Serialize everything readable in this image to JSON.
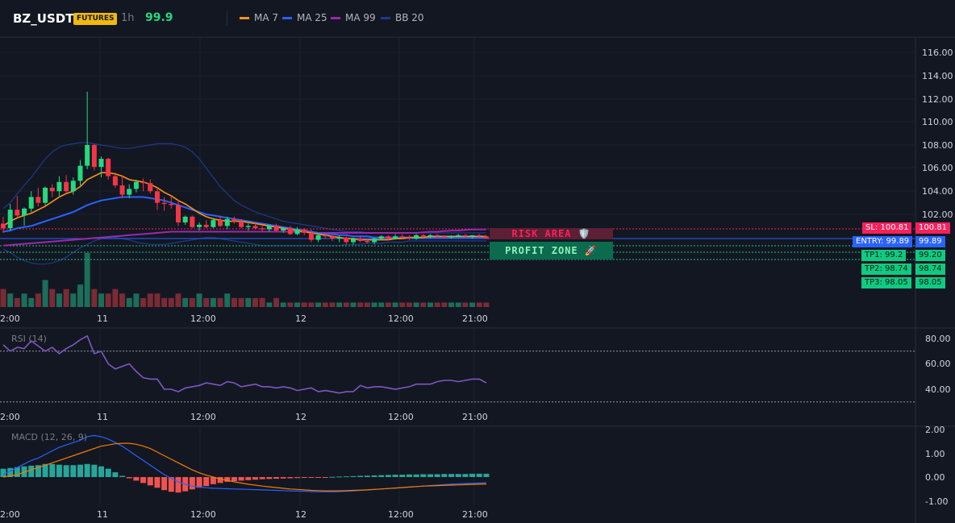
{
  "header": {
    "symbol": "BZ_USDT",
    "badge": "FUTURES",
    "interval": "1h",
    "price": "99.9",
    "legend": [
      {
        "label": "MA 7",
        "color": "#f7931a"
      },
      {
        "label": "MA 25",
        "color": "#2962ff"
      },
      {
        "label": "MA 99",
        "color": "#9c27b0"
      },
      {
        "label": "BB 20",
        "color": "#1e3a8a"
      }
    ]
  },
  "price_axis": {
    "ticks": [
      "116.00",
      "114.00",
      "112.00",
      "110.00",
      "108.00",
      "106.00",
      "104.00",
      "102.00"
    ]
  },
  "time_axis": {
    "ticks": [
      "2:00",
      "11",
      "12:00",
      "12",
      "12:00",
      "21:00"
    ]
  },
  "levels": {
    "sl": "SL: 100.81",
    "sl_price": "100.81",
    "entry": "ENTRY: 99.89",
    "entry_price": "99.89",
    "tp1": "TP1: 99.2",
    "tp1_price": "99.20",
    "tp2": "TP2: 98.74",
    "tp2_price": "98.74",
    "tp3": "TP3: 98.05",
    "tp3_price": "98.05"
  },
  "zones": {
    "risk": "RISK AREA 🛡️",
    "profit": "PROFIT ZONE 🚀"
  },
  "rsi": {
    "title": "RSI (14)",
    "ticks": [
      "80.00",
      "60.00",
      "40.00"
    ]
  },
  "macd": {
    "title": "MACD (12, 26, 9)",
    "ticks": [
      "2.00",
      "1.00",
      "0.00",
      "-1.00"
    ]
  },
  "colors": {
    "bull": "#26d97f",
    "bear": "#f23645",
    "grid": "#1e222d",
    "sl": "#f7215d",
    "entry": "#2962ff",
    "tp": "#0ecb81"
  },
  "chart_data": {
    "type": "candlestick",
    "candles": [
      {
        "o": 101.2,
        "h": 101.8,
        "l": 100.4,
        "c": 100.8
      },
      {
        "o": 100.8,
        "h": 102.9,
        "l": 100.6,
        "c": 102.4
      },
      {
        "o": 102.4,
        "h": 103.6,
        "l": 101.8,
        "c": 101.9
      },
      {
        "o": 101.9,
        "h": 102.6,
        "l": 101.0,
        "c": 102.5
      },
      {
        "o": 102.5,
        "h": 104.0,
        "l": 102.2,
        "c": 103.5
      },
      {
        "o": 103.5,
        "h": 104.3,
        "l": 102.7,
        "c": 103.0
      },
      {
        "o": 103.0,
        "h": 104.4,
        "l": 102.8,
        "c": 104.3
      },
      {
        "o": 104.3,
        "h": 104.6,
        "l": 103.5,
        "c": 104.0
      },
      {
        "o": 104.0,
        "h": 105.3,
        "l": 103.6,
        "c": 104.8
      },
      {
        "o": 104.8,
        "h": 105.4,
        "l": 103.8,
        "c": 104.0
      },
      {
        "o": 104.0,
        "h": 105.2,
        "l": 103.7,
        "c": 104.9
      },
      {
        "o": 104.9,
        "h": 106.7,
        "l": 104.5,
        "c": 106.2
      },
      {
        "o": 106.2,
        "h": 112.6,
        "l": 105.9,
        "c": 108.0
      },
      {
        "o": 108.0,
        "h": 108.1,
        "l": 105.8,
        "c": 106.1
      },
      {
        "o": 106.1,
        "h": 107.0,
        "l": 105.2,
        "c": 106.8
      },
      {
        "o": 106.8,
        "h": 106.9,
        "l": 105.0,
        "c": 105.3
      },
      {
        "o": 105.3,
        "h": 105.6,
        "l": 104.3,
        "c": 104.5
      },
      {
        "o": 104.5,
        "h": 105.4,
        "l": 103.4,
        "c": 103.7
      },
      {
        "o": 103.7,
        "h": 104.6,
        "l": 103.4,
        "c": 104.2
      },
      {
        "o": 104.2,
        "h": 105.0,
        "l": 103.9,
        "c": 104.8
      },
      {
        "o": 104.8,
        "h": 105.1,
        "l": 104.0,
        "c": 104.7
      },
      {
        "o": 104.7,
        "h": 105.0,
        "l": 103.8,
        "c": 104.0
      },
      {
        "o": 104.0,
        "h": 104.3,
        "l": 102.4,
        "c": 103.0
      },
      {
        "o": 103.0,
        "h": 103.5,
        "l": 102.3,
        "c": 102.9
      },
      {
        "o": 102.9,
        "h": 103.6,
        "l": 102.5,
        "c": 102.8
      },
      {
        "o": 102.8,
        "h": 103.3,
        "l": 101.0,
        "c": 101.3
      },
      {
        "o": 101.3,
        "h": 101.9,
        "l": 101.1,
        "c": 101.8
      },
      {
        "o": 101.8,
        "h": 101.9,
        "l": 100.8,
        "c": 100.9
      },
      {
        "o": 100.9,
        "h": 101.3,
        "l": 100.6,
        "c": 101.1
      },
      {
        "o": 101.1,
        "h": 101.5,
        "l": 100.8,
        "c": 100.9
      },
      {
        "o": 100.9,
        "h": 101.7,
        "l": 100.8,
        "c": 101.5
      },
      {
        "o": 101.5,
        "h": 101.9,
        "l": 100.9,
        "c": 101.0
      },
      {
        "o": 101.0,
        "h": 101.8,
        "l": 100.7,
        "c": 101.6
      },
      {
        "o": 101.6,
        "h": 101.8,
        "l": 101.2,
        "c": 101.4
      },
      {
        "o": 101.4,
        "h": 101.6,
        "l": 100.8,
        "c": 100.9
      },
      {
        "o": 100.9,
        "h": 101.2,
        "l": 100.6,
        "c": 101.0
      },
      {
        "o": 101.0,
        "h": 101.3,
        "l": 100.7,
        "c": 100.8
      },
      {
        "o": 100.8,
        "h": 101.1,
        "l": 100.5,
        "c": 100.7
      },
      {
        "o": 100.7,
        "h": 101.1,
        "l": 100.5,
        "c": 101.0
      },
      {
        "o": 101.0,
        "h": 101.2,
        "l": 100.5,
        "c": 100.6
      },
      {
        "o": 100.6,
        "h": 100.9,
        "l": 100.4,
        "c": 100.8
      },
      {
        "o": 100.8,
        "h": 101.0,
        "l": 100.2,
        "c": 100.3
      },
      {
        "o": 100.3,
        "h": 100.9,
        "l": 100.2,
        "c": 100.7
      },
      {
        "o": 100.7,
        "h": 100.8,
        "l": 100.2,
        "c": 100.4
      },
      {
        "o": 100.4,
        "h": 100.7,
        "l": 99.6,
        "c": 99.8
      },
      {
        "o": 99.8,
        "h": 100.3,
        "l": 99.6,
        "c": 100.2
      },
      {
        "o": 100.2,
        "h": 100.4,
        "l": 99.9,
        "c": 100.1
      },
      {
        "o": 100.1,
        "h": 100.2,
        "l": 99.7,
        "c": 99.9
      },
      {
        "o": 99.9,
        "h": 100.2,
        "l": 99.6,
        "c": 100.0
      },
      {
        "o": 100.0,
        "h": 100.1,
        "l": 99.4,
        "c": 99.6
      },
      {
        "o": 99.6,
        "h": 100.0,
        "l": 99.4,
        "c": 99.9
      },
      {
        "o": 99.9,
        "h": 100.1,
        "l": 99.6,
        "c": 99.7
      },
      {
        "o": 99.7,
        "h": 99.9,
        "l": 99.5,
        "c": 99.6
      },
      {
        "o": 99.6,
        "h": 100.0,
        "l": 99.4,
        "c": 99.9
      },
      {
        "o": 99.9,
        "h": 100.2,
        "l": 99.8,
        "c": 100.1
      },
      {
        "o": 100.1,
        "h": 100.2,
        "l": 99.8,
        "c": 99.9
      },
      {
        "o": 99.9,
        "h": 100.3,
        "l": 99.8,
        "c": 100.1
      },
      {
        "o": 100.1,
        "h": 100.3,
        "l": 99.9,
        "c": 100.0
      },
      {
        "o": 100.0,
        "h": 100.2,
        "l": 99.8,
        "c": 99.9
      },
      {
        "o": 99.9,
        "h": 100.3,
        "l": 99.8,
        "c": 100.2
      },
      {
        "o": 100.2,
        "h": 100.3,
        "l": 100.0,
        "c": 100.1
      },
      {
        "o": 100.1,
        "h": 100.3,
        "l": 99.9,
        "c": 100.2
      },
      {
        "o": 100.2,
        "h": 100.3,
        "l": 100.0,
        "c": 100.1
      },
      {
        "o": 100.1,
        "h": 100.2,
        "l": 99.9,
        "c": 100.0
      },
      {
        "o": 100.0,
        "h": 100.2,
        "l": 99.9,
        "c": 100.1
      },
      {
        "o": 100.1,
        "h": 100.3,
        "l": 100.0,
        "c": 100.2
      },
      {
        "o": 100.2,
        "h": 100.3,
        "l": 100.0,
        "c": 100.1
      },
      {
        "o": 100.1,
        "h": 100.2,
        "l": 99.9,
        "c": 100.2
      },
      {
        "o": 100.2,
        "h": 100.3,
        "l": 100.0,
        "c": 100.1
      },
      {
        "o": 100.1,
        "h": 100.2,
        "l": 99.9,
        "c": 99.9
      }
    ],
    "volume": [
      4,
      3,
      2,
      3,
      2,
      3,
      6,
      4,
      3,
      4,
      3,
      5,
      12,
      4,
      3,
      3,
      4,
      3,
      2,
      3,
      2,
      3,
      3,
      2,
      2,
      3,
      2,
      2,
      3,
      2,
      2,
      2,
      3,
      2,
      2,
      2,
      2,
      2,
      1,
      2,
      1,
      1,
      1,
      1,
      1,
      1,
      1,
      1,
      1,
      1,
      1,
      1,
      1,
      1,
      1,
      1,
      1,
      1,
      1,
      1,
      1,
      1,
      1,
      1,
      1,
      1,
      1,
      1,
      1,
      1
    ],
    "ma7": [
      101.0,
      101.4,
      101.7,
      101.9,
      102.1,
      102.4,
      102.7,
      103.1,
      103.5,
      103.8,
      104.0,
      104.4,
      105.0,
      105.3,
      105.6,
      105.6,
      105.5,
      105.3,
      105.0,
      104.9,
      104.8,
      104.6,
      104.3,
      103.9,
      103.6,
      103.2,
      102.9,
      102.5,
      102.1,
      101.8,
      101.6,
      101.5,
      101.4,
      101.4,
      101.4,
      101.3,
      101.2,
      101.1,
      101.0,
      100.9,
      100.8,
      100.7,
      100.6,
      100.5,
      100.4,
      100.3,
      100.2,
      100.1,
      100.0,
      99.9,
      99.9,
      99.8,
      99.8,
      99.8,
      99.8,
      99.8,
      99.9,
      99.9,
      100.0,
      100.0,
      100.0,
      100.1,
      100.1,
      100.1,
      100.1,
      100.1,
      100.1,
      100.1,
      100.1,
      100.1
    ],
    "ma25": [
      100.5,
      100.6,
      100.8,
      100.9,
      101.0,
      101.2,
      101.4,
      101.6,
      101.8,
      102.0,
      102.2,
      102.5,
      102.8,
      103.0,
      103.2,
      103.3,
      103.4,
      103.5,
      103.5,
      103.5,
      103.5,
      103.4,
      103.3,
      103.2,
      103.0,
      102.8,
      102.6,
      102.4,
      102.2,
      102.0,
      101.9,
      101.8,
      101.7,
      101.6,
      101.5,
      101.4,
      101.3,
      101.2,
      101.1,
      101.0,
      100.9,
      100.8,
      100.7,
      100.6,
      100.5,
      100.4,
      100.3,
      100.3,
      100.2,
      100.2,
      100.1,
      100.1,
      100.1,
      100.0,
      100.0,
      100.0,
      100.0,
      100.0,
      100.0,
      100.0,
      100.0,
      100.0,
      100.0,
      100.0,
      100.0,
      100.0,
      100.0,
      100.0,
      100.0,
      100.0
    ],
    "ma99": [
      99.3,
      99.35,
      99.4,
      99.45,
      99.5,
      99.55,
      99.6,
      99.65,
      99.7,
      99.75,
      99.8,
      99.85,
      99.9,
      99.95,
      100.0,
      100.05,
      100.1,
      100.15,
      100.2,
      100.25,
      100.3,
      100.35,
      100.4,
      100.45,
      100.5,
      100.5,
      100.5,
      100.5,
      100.5,
      100.5,
      100.5,
      100.5,
      100.5,
      100.5,
      100.5,
      100.5,
      100.5,
      100.5,
      100.5,
      100.5,
      100.5,
      100.5,
      100.5,
      100.5,
      100.4,
      100.4,
      100.4,
      100.4,
      100.4,
      100.4,
      100.4,
      100.4,
      100.4,
      100.4,
      100.4,
      100.4,
      100.4,
      100.4,
      100.4,
      100.4,
      100.45,
      100.5,
      100.5,
      100.55,
      100.6,
      100.6,
      100.65,
      100.7,
      100.7,
      100.7
    ],
    "bb_upper": [
      102.5,
      103.0,
      103.8,
      104.5,
      105.2,
      106.0,
      106.8,
      107.4,
      107.8,
      108.0,
      108.1,
      108.2,
      108.2,
      108.1,
      108.0,
      107.9,
      107.8,
      107.7,
      107.7,
      107.8,
      107.9,
      108.0,
      108.1,
      108.1,
      108.1,
      108.0,
      107.8,
      107.4,
      106.8,
      106.0,
      105.2,
      104.4,
      103.8,
      103.2,
      102.8,
      102.5,
      102.2,
      102.0,
      101.8,
      101.6,
      101.4,
      101.3,
      101.2,
      101.1,
      101.0,
      100.9,
      100.8,
      100.7,
      100.6,
      100.5,
      100.5,
      100.5,
      100.4,
      100.4,
      100.4,
      100.4,
      100.4,
      100.4,
      100.4,
      100.4,
      100.4,
      100.4,
      100.4,
      100.4,
      100.4,
      100.4,
      100.4,
      100.4,
      100.4,
      100.4
    ],
    "bb_lower": [
      99.0,
      98.7,
      98.3,
      98.0,
      97.8,
      97.7,
      97.7,
      97.8,
      98.0,
      98.3,
      98.7,
      99.1,
      99.4,
      99.7,
      99.9,
      100.0,
      100.0,
      99.9,
      99.8,
      99.6,
      99.5,
      99.4,
      99.4,
      99.4,
      99.5,
      99.6,
      99.7,
      99.8,
      99.9,
      100.0,
      100.0,
      99.9,
      99.8,
      99.7,
      99.6,
      99.5,
      99.4,
      99.3,
      99.3,
      99.3,
      99.3,
      99.3,
      99.3,
      99.3,
      99.3,
      99.3,
      99.3,
      99.3,
      99.3,
      99.4,
      99.4,
      99.4,
      99.5,
      99.5,
      99.5,
      99.6,
      99.6,
      99.6,
      99.7,
      99.7,
      99.7,
      99.7,
      99.7,
      99.7,
      99.7,
      99.7,
      99.7,
      99.7,
      99.7,
      99.7
    ],
    "rsi": [
      75,
      70,
      73,
      72,
      78,
      74,
      70,
      73,
      68,
      72,
      75,
      79,
      82,
      68,
      70,
      60,
      56,
      58,
      60,
      54,
      49,
      48,
      48,
      40,
      40,
      38,
      41,
      42,
      43,
      45,
      44,
      43,
      46,
      45,
      42,
      43,
      44,
      42,
      42,
      41,
      42,
      41,
      39,
      40,
      41,
      38,
      39,
      38,
      37,
      38,
      38,
      43,
      41,
      42,
      42,
      41,
      40,
      41,
      42,
      44,
      44,
      44,
      46,
      47,
      47,
      46,
      47,
      48,
      48,
      45
    ],
    "macd": [
      0.1,
      0.25,
      0.4,
      0.55,
      0.7,
      0.8,
      0.95,
      1.1,
      1.25,
      1.35,
      1.45,
      1.55,
      1.7,
      1.75,
      1.7,
      1.6,
      1.45,
      1.3,
      1.1,
      0.9,
      0.7,
      0.5,
      0.3,
      0.1,
      -0.05,
      -0.2,
      -0.3,
      -0.38,
      -0.42,
      -0.45,
      -0.47,
      -0.48,
      -0.49,
      -0.5,
      -0.51,
      -0.52,
      -0.53,
      -0.54,
      -0.55,
      -0.56,
      -0.57,
      -0.58,
      -0.59,
      -0.6,
      -0.61,
      -0.62,
      -0.62,
      -0.62,
      -0.61,
      -0.6,
      -0.58,
      -0.56,
      -0.54,
      -0.52,
      -0.5,
      -0.48,
      -0.46,
      -0.44,
      -0.42,
      -0.4,
      -0.38,
      -0.36,
      -0.34,
      -0.32,
      -0.3,
      -0.28,
      -0.27,
      -0.26,
      -0.25,
      -0.24
    ],
    "signal": [
      0.0,
      0.05,
      0.1,
      0.2,
      0.3,
      0.4,
      0.5,
      0.6,
      0.7,
      0.8,
      0.9,
      1.0,
      1.1,
      1.2,
      1.3,
      1.35,
      1.4,
      1.42,
      1.42,
      1.38,
      1.3,
      1.2,
      1.05,
      0.9,
      0.75,
      0.6,
      0.45,
      0.3,
      0.18,
      0.08,
      0.0,
      -0.08,
      -0.14,
      -0.2,
      -0.25,
      -0.3,
      -0.34,
      -0.38,
      -0.41,
      -0.44,
      -0.47,
      -0.5,
      -0.52,
      -0.54,
      -0.56,
      -0.57,
      -0.58,
      -0.58,
      -0.58,
      -0.57,
      -0.56,
      -0.55,
      -0.54,
      -0.52,
      -0.5,
      -0.48,
      -0.46,
      -0.44,
      -0.42,
      -0.4,
      -0.38,
      -0.37,
      -0.36,
      -0.35,
      -0.34,
      -0.33,
      -0.32,
      -0.31,
      -0.3,
      -0.29
    ],
    "hist": [
      0.35,
      0.38,
      0.42,
      0.45,
      0.48,
      0.5,
      0.55,
      0.55,
      0.52,
      0.5,
      0.5,
      0.52,
      0.55,
      0.52,
      0.45,
      0.35,
      0.2,
      0.05,
      -0.05,
      -0.15,
      -0.25,
      -0.35,
      -0.45,
      -0.55,
      -0.62,
      -0.65,
      -0.6,
      -0.52,
      -0.45,
      -0.38,
      -0.3,
      -0.25,
      -0.2,
      -0.17,
      -0.15,
      -0.13,
      -0.11,
      -0.09,
      -0.08,
      -0.07,
      -0.06,
      -0.05,
      -0.04,
      -0.03,
      -0.02,
      -0.02,
      -0.01,
      0.01,
      0.02,
      0.03,
      0.04,
      0.05,
      0.06,
      0.07,
      0.08,
      0.09,
      0.1,
      0.1,
      0.11,
      0.11,
      0.12,
      0.12,
      0.12,
      0.13,
      0.13,
      0.13,
      0.13,
      0.14,
      0.14,
      0.14
    ],
    "ylim": [
      97.5,
      116.8
    ]
  }
}
